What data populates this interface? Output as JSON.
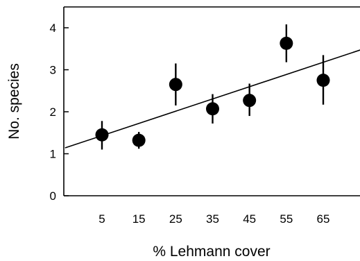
{
  "chart_data": {
    "type": "scatter",
    "title": "",
    "xlabel": "% Lehmann cover",
    "ylabel": "No. species",
    "xlim": [
      -5,
      75
    ],
    "ylim": [
      0,
      4.5
    ],
    "x_ticks": [
      5,
      15,
      25,
      35,
      45,
      55,
      65
    ],
    "y_ticks": [
      0,
      1,
      2,
      3,
      4
    ],
    "grid": false,
    "legend": "none",
    "series": [
      {
        "points": [
          {
            "x": 5,
            "y": 1.45,
            "err_low": 1.1,
            "err_high": 1.78
          },
          {
            "x": 15,
            "y": 1.32,
            "err_low": 1.12,
            "err_high": 1.52
          },
          {
            "x": 25,
            "y": 2.65,
            "err_low": 2.15,
            "err_high": 3.15
          },
          {
            "x": 35,
            "y": 2.07,
            "err_low": 1.72,
            "err_high": 2.42
          },
          {
            "x": 45,
            "y": 2.27,
            "err_low": 1.9,
            "err_high": 2.67
          },
          {
            "x": 55,
            "y": 3.63,
            "err_low": 3.18,
            "err_high": 4.08
          },
          {
            "x": 65,
            "y": 2.75,
            "err_low": 2.17,
            "err_high": 3.35
          }
        ]
      }
    ],
    "trendline": {
      "x_start": -5,
      "y_start": 1.14,
      "x_end": 75,
      "y_end": 3.47
    },
    "marker_color": "#000000",
    "line_color": "#000000"
  }
}
